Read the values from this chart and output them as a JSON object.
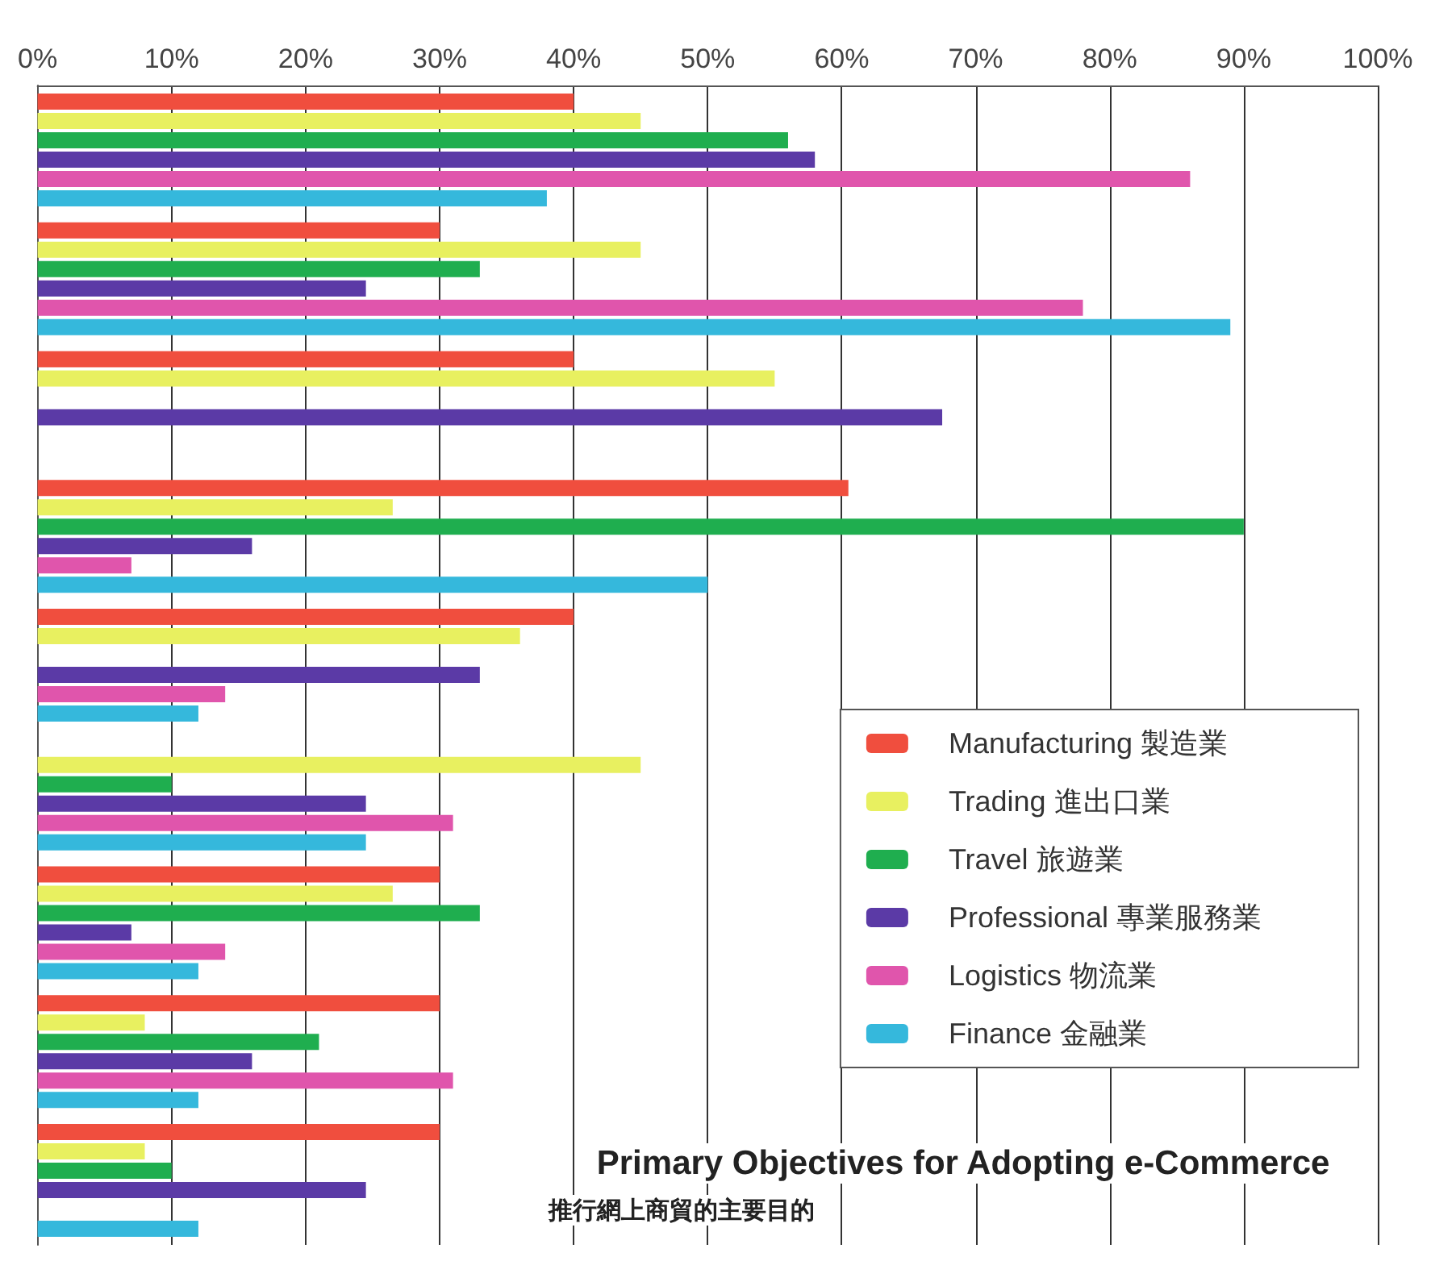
{
  "chart_data": {
    "type": "bar",
    "orientation": "horizontal",
    "title": "Primary Objectives for Adopting e-Commerce",
    "subtitle": "推行網上商貿的主要目的",
    "categories": [
      null,
      null,
      null,
      null,
      null,
      null,
      null,
      null,
      null
    ],
    "series": [
      {
        "name": "Manufacturing 製造業",
        "color": "#f04e3e",
        "values": [
          40,
          30,
          40,
          60.5,
          40,
          null,
          30,
          30,
          30
        ]
      },
      {
        "name": "Trading 進出口業",
        "color": "#e8f060",
        "values": [
          45,
          45,
          55,
          26.5,
          36,
          45,
          26.5,
          8,
          8
        ]
      },
      {
        "name": "Travel 旅遊業",
        "color": "#1fae4f",
        "values": [
          56,
          33,
          null,
          90,
          null,
          10,
          33,
          21,
          10
        ]
      },
      {
        "name": "Professional 專業服務業",
        "color": "#5b3aa6",
        "values": [
          58,
          24.5,
          67.5,
          16,
          33,
          24.5,
          7,
          16,
          24.5
        ]
      },
      {
        "name": "Logistics 物流業",
        "color": "#e055ac",
        "values": [
          86,
          78,
          null,
          7,
          14,
          31,
          14,
          31,
          null
        ]
      },
      {
        "name": "Finance 金融業",
        "color": "#35b8dc",
        "values": [
          38,
          89,
          null,
          50,
          12,
          24.5,
          12,
          12,
          12
        ]
      }
    ],
    "xlim": [
      0,
      100
    ],
    "xticks": [
      {
        "value": 0,
        "label": "0%"
      },
      {
        "value": 10,
        "label": "10%"
      },
      {
        "value": 20,
        "label": "20%"
      },
      {
        "value": 30,
        "label": "30%"
      },
      {
        "value": 40,
        "label": "40%"
      },
      {
        "value": 50,
        "label": "50%"
      },
      {
        "value": 60,
        "label": "60%"
      },
      {
        "value": 70,
        "label": "70%"
      },
      {
        "value": 80,
        "label": "80%"
      },
      {
        "value": 90,
        "label": "90%"
      },
      {
        "value": 100,
        "label": "100%"
      }
    ],
    "grid": "x",
    "legend": "bottom right"
  }
}
